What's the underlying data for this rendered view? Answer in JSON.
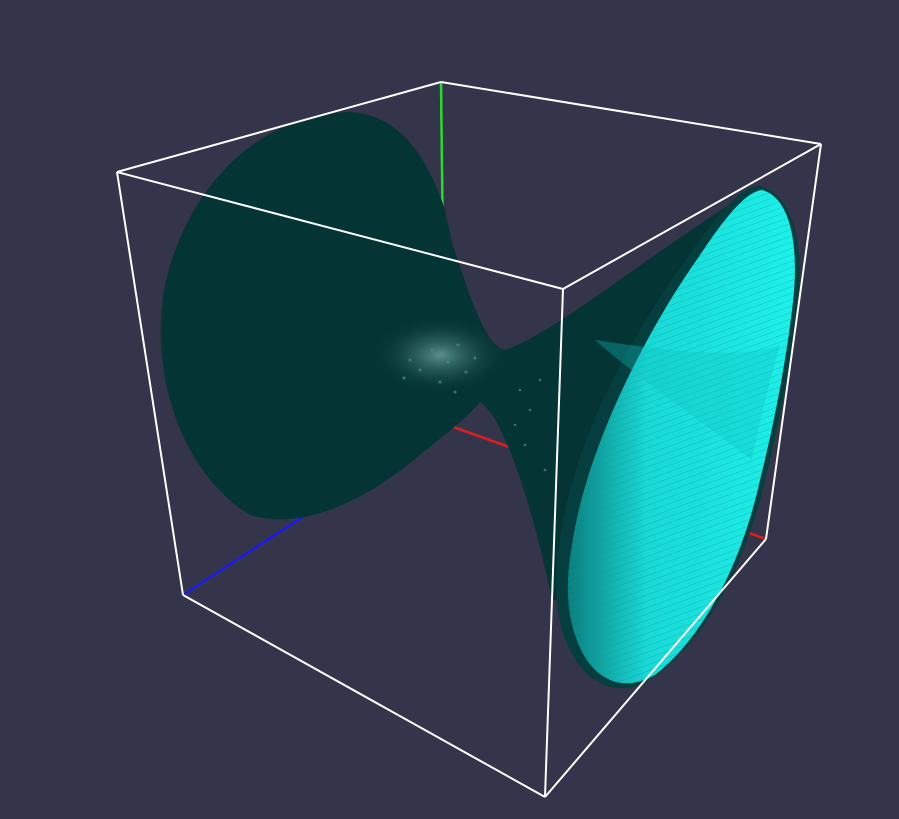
{
  "viewer": {
    "background_color": "#34344b",
    "surface_dark_color": "#043434",
    "surface_light_color": "#19e8e2",
    "surface_mid_color": "#0a8c8c",
    "box_color": "#ffffff",
    "axis_x_color": "#e21a1a",
    "axis_y_color": "#2bd82b",
    "axis_z_color": "#1a1ae8"
  }
}
